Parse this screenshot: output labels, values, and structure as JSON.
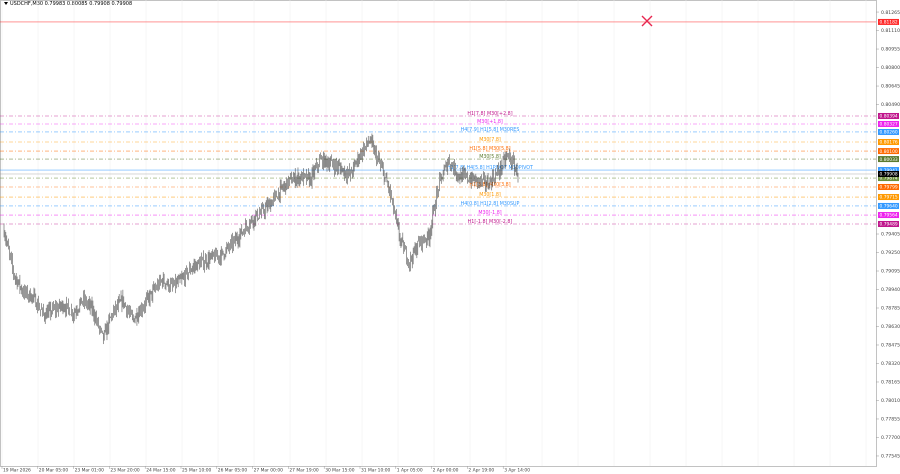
{
  "window": {
    "title": "USDCHF,M30  0.79983 0.80085 0.79908 0.79908",
    "symbol": "USDCHF",
    "timeframe": "M30"
  },
  "colors": {
    "background": "#ffffff",
    "candles": "#333333",
    "axis": "#888888",
    "grid": "#eeeeee"
  },
  "chart_data": {
    "type": "candlestick",
    "title": "USDCHF,M30",
    "ylim": [
      0.77461,
      0.81366
    ],
    "grid": true,
    "current_price": 0.79908,
    "close_samples": [
      0.79439,
      0.79061,
      0.78915,
      0.78873,
      0.78726,
      0.78768,
      0.7881,
      0.78743,
      0.78852,
      0.78768,
      0.78525,
      0.78743,
      0.78852,
      0.78684,
      0.78793,
      0.78911,
      0.7902,
      0.78961,
      0.7902,
      0.79124,
      0.79166,
      0.79204,
      0.79229,
      0.79313,
      0.79413,
      0.79522,
      0.79581,
      0.79665,
      0.79774,
      0.79858,
      0.79883,
      0.79858,
      0.80025,
      0.8,
      0.79958,
      0.79899,
      0.80067,
      0.80193,
      0.79992,
      0.79774,
      0.79376,
      0.7917,
      0.79334,
      0.79388,
      0.79824,
      0.80025,
      0.79891,
      0.79874,
      0.79849,
      0.79828,
      0.79925,
      0.80067,
      0.79908
    ],
    "y_ticks": [
      "0.81265",
      "0.81110",
      "0.80955",
      "0.80800",
      "0.80645",
      "0.80490",
      "0.79405",
      "0.79250",
      "0.79095",
      "0.78940",
      "0.78785",
      "0.78630",
      "0.78475",
      "0.78320",
      "0.78165",
      "0.78010",
      "0.77855",
      "0.77700",
      "0.77545"
    ],
    "x_ticks": [
      "19 Mar 2026",
      "20 Mar 05:00",
      "23 Mar 01:00",
      "23 Mar 20:00",
      "24 Mar 15:00",
      "25 Mar 10:00",
      "26 Mar 05:00",
      "27 Mar 00:00",
      "27 Mar 19:00",
      "30 Mar 15:00",
      "31 Mar 10:00",
      "1 Apr 05:00",
      "2 Apr 00:00",
      "2 Apr 19:00",
      "3 Apr 14:00"
    ],
    "levels": [
      {
        "label": "",
        "price": 0.81182,
        "price_text": "0.81182",
        "color": "#ff2a2a",
        "style": "solid"
      },
      {
        "label": "H1[7.8] M30[+2.8]",
        "price": 0.80394,
        "price_text": "0.80394",
        "color": "#c0168c",
        "style": "dashdot"
      },
      {
        "label": "M30[+1.8]",
        "price": 0.80327,
        "price_text": "0.80327",
        "color": "#ee22ee",
        "style": "dashdot"
      },
      {
        "label": "H4[7.9] H1[5.8] M30RES",
        "price": 0.8026,
        "price_text": "0.80260",
        "color": "#3399ff",
        "style": "dashdot"
      },
      {
        "label": "M30[7.8]",
        "price": 0.80176,
        "price_text": "0.80176",
        "color": "#ff9900",
        "style": "dashdot"
      },
      {
        "label": "H1[5.8] M30[5.8]",
        "price": 0.801,
        "price_text": "0.80100",
        "color": "#ff6a00",
        "style": "dashdot"
      },
      {
        "label": "M30[5.8]",
        "price": 0.80033,
        "price_text": "0.80033",
        "color": "#5b7a2e",
        "style": "dashdot"
      },
      {
        "label": "H1[7.8] H4[5.8] H1PIVOT M30PIVOT",
        "price": 0.79941,
        "price_text": "0.79941",
        "color": "#3399ff",
        "style": "solid"
      },
      {
        "label": "",
        "price": 0.79874,
        "price_text": "0.79874",
        "color": "#6b8e3a",
        "style": "dashdot"
      },
      {
        "label": "H1[3.8] M30[3.8]",
        "price": 0.79799,
        "price_text": "0.79799",
        "color": "#ff6a00",
        "style": "dashdot"
      },
      {
        "label": "M30[1.8]",
        "price": 0.79715,
        "price_text": "0.79715",
        "color": "#ff9900",
        "style": "dashdot"
      },
      {
        "label": "H4[0.8] H1[2.8] M30SUP",
        "price": 0.7964,
        "price_text": "0.79640",
        "color": "#3399ff",
        "style": "dashdot"
      },
      {
        "label": "M30[-1.8]",
        "price": 0.79564,
        "price_text": "0.79564",
        "color": "#ee22ee",
        "style": "dashdot"
      },
      {
        "label": "H1[-1.8] M30[-2.8]",
        "price": 0.79489,
        "price_text": "0.79489",
        "color": "#c0168c",
        "style": "dashdot"
      }
    ],
    "current_price_text": "0.79908",
    "markers": [
      {
        "type": "cross-icon",
        "price": 0.8119,
        "color": "#e8264f"
      }
    ]
  }
}
